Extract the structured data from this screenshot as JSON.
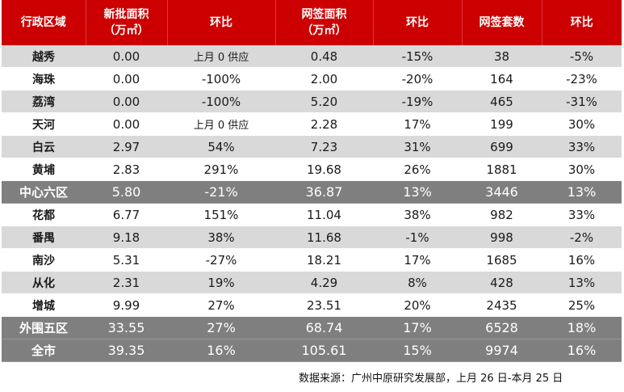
{
  "headers": [
    {
      "line1": "行政区域",
      "line2": ""
    },
    {
      "line1": "新批面积",
      "line2": "（万㎡）"
    },
    {
      "line1": "环比",
      "line2": ""
    },
    {
      "line1": "网签面积",
      "line2": "（万㎡）"
    },
    {
      "line1": "环比",
      "line2": ""
    },
    {
      "line1": "网签套数",
      "line2": ""
    },
    {
      "line1": "环比",
      "line2": ""
    }
  ],
  "rows": [
    {
      "style": "shade",
      "cells": [
        "越秀",
        "0.00",
        "上月 0 供应",
        "0.48",
        "-15%",
        "38",
        "-5%"
      ]
    },
    {
      "style": "plain",
      "cells": [
        "海珠",
        "0.00",
        "-100%",
        "2.00",
        "-20%",
        "164",
        "-23%"
      ]
    },
    {
      "style": "shade",
      "cells": [
        "荔湾",
        "0.00",
        "-100%",
        "5.20",
        "-19%",
        "465",
        "-31%"
      ]
    },
    {
      "style": "plain",
      "cells": [
        "天河",
        "0.00",
        "上月 0 供应",
        "2.28",
        "17%",
        "199",
        "30%"
      ]
    },
    {
      "style": "shade",
      "cells": [
        "白云",
        "2.97",
        "54%",
        "7.23",
        "31%",
        "699",
        "33%"
      ]
    },
    {
      "style": "plain",
      "cells": [
        "黄埔",
        "2.83",
        "291%",
        "19.68",
        "26%",
        "1881",
        "30%"
      ]
    },
    {
      "style": "total",
      "cells": [
        "中心六区",
        "5.80",
        "-21%",
        "36.87",
        "13%",
        "3446",
        "13%"
      ]
    },
    {
      "style": "plain",
      "cells": [
        "花都",
        "6.77",
        "151%",
        "11.04",
        "38%",
        "982",
        "33%"
      ]
    },
    {
      "style": "shade",
      "cells": [
        "番禺",
        "9.18",
        "38%",
        "11.68",
        "-1%",
        "998",
        "-2%"
      ]
    },
    {
      "style": "plain",
      "cells": [
        "南沙",
        "5.31",
        "-27%",
        "18.21",
        "17%",
        "1685",
        "16%"
      ]
    },
    {
      "style": "shade",
      "cells": [
        "从化",
        "2.31",
        "19%",
        "4.29",
        "8%",
        "428",
        "13%"
      ]
    },
    {
      "style": "plain",
      "cells": [
        "增城",
        "9.99",
        "27%",
        "23.51",
        "20%",
        "2435",
        "25%"
      ]
    },
    {
      "style": "total",
      "cells": [
        "外围五区",
        "33.55",
        "27%",
        "68.74",
        "17%",
        "6528",
        "18%"
      ]
    },
    {
      "style": "total",
      "cells": [
        "全市",
        "39.35",
        "16%",
        "105.61",
        "15%",
        "9974",
        "16%"
      ]
    }
  ],
  "footer": {
    "source": "数据来源：广州中原研究发展部，上月 26 日-本月 25 日"
  },
  "colors": {
    "header_bg": "#cc0000",
    "shade_bg": "#d9d9d9",
    "total_bg": "#7f7f7f"
  }
}
